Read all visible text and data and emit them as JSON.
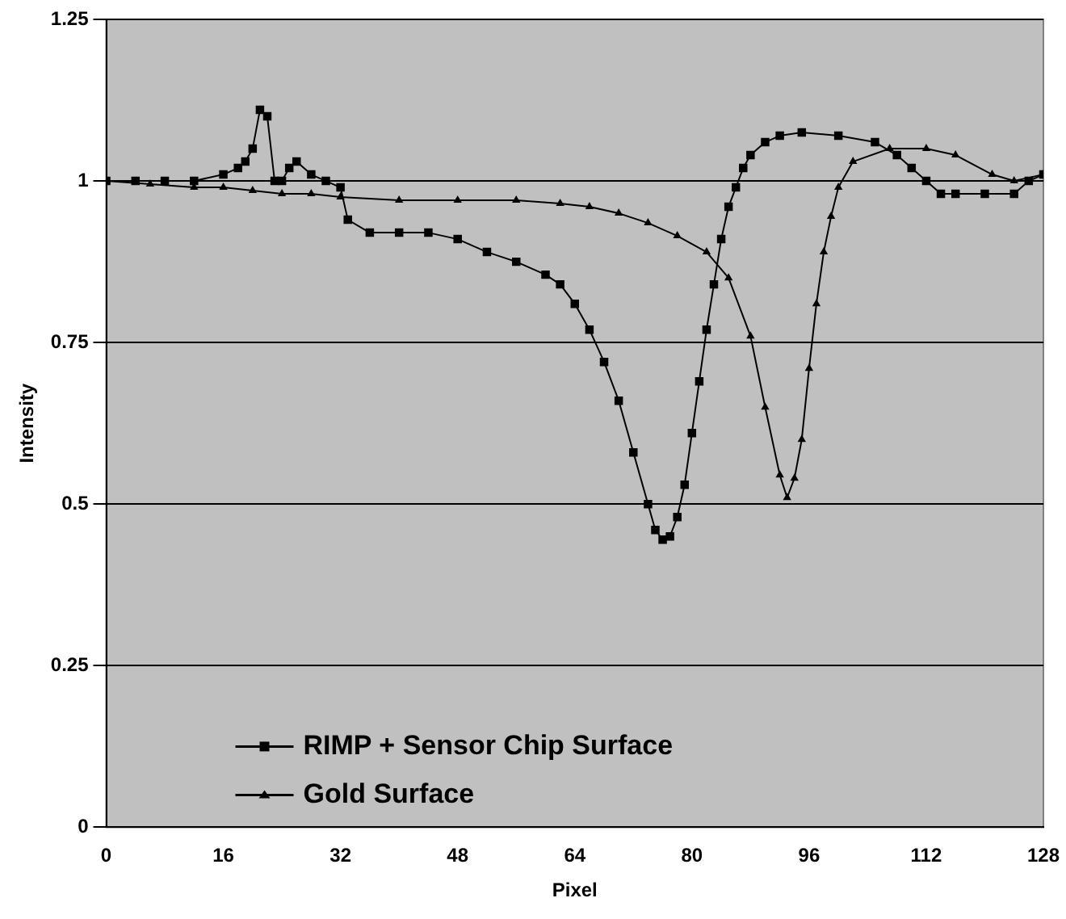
{
  "chart_data": {
    "type": "line",
    "xlabel": "Pixel",
    "ylabel": "Intensity",
    "xlim": [
      0,
      128
    ],
    "xticks": [
      0,
      16,
      32,
      48,
      64,
      80,
      96,
      112,
      128
    ],
    "ylim": [
      0,
      1.25
    ],
    "yticks": [
      0,
      0.25,
      0.5,
      0.75,
      1,
      1.25
    ],
    "grid": "y",
    "legend": "bottom left",
    "series": [
      {
        "name": "RIMP + Sensor Chip Surface",
        "color": "#000000",
        "marker": "square",
        "x": [
          0,
          4,
          8,
          12,
          16,
          18,
          19,
          20,
          21,
          22,
          23,
          24,
          25,
          26,
          28,
          30,
          32,
          33,
          36,
          40,
          44,
          48,
          52,
          56,
          60,
          62,
          64,
          66,
          68,
          70,
          72,
          74,
          75,
          76,
          77,
          78,
          79,
          80,
          81,
          82,
          83,
          84,
          85,
          86,
          87,
          88,
          90,
          92,
          95,
          100,
          105,
          108,
          110,
          112,
          114,
          116,
          120,
          124,
          126,
          128
        ],
        "values": [
          1.0,
          1.0,
          1.0,
          1.0,
          1.01,
          1.02,
          1.03,
          1.05,
          1.11,
          1.1,
          1.0,
          1.0,
          1.02,
          1.03,
          1.01,
          1.0,
          0.99,
          0.94,
          0.92,
          0.92,
          0.92,
          0.91,
          0.89,
          0.875,
          0.855,
          0.84,
          0.81,
          0.77,
          0.72,
          0.66,
          0.58,
          0.5,
          0.46,
          0.445,
          0.45,
          0.48,
          0.53,
          0.61,
          0.69,
          0.77,
          0.84,
          0.91,
          0.96,
          0.99,
          1.02,
          1.04,
          1.06,
          1.07,
          1.075,
          1.07,
          1.06,
          1.04,
          1.02,
          1.0,
          0.98,
          0.98,
          0.98,
          0.98,
          1.0,
          1.01
        ]
      },
      {
        "name": "Gold Surface",
        "color": "#000000",
        "marker": "triangle",
        "x": [
          0,
          6,
          12,
          16,
          20,
          24,
          28,
          32,
          40,
          48,
          56,
          62,
          66,
          70,
          74,
          78,
          82,
          85,
          88,
          90,
          92,
          93,
          94,
          95,
          96,
          97,
          98,
          99,
          100,
          102,
          107,
          112,
          116,
          121,
          124,
          128
        ],
        "values": [
          1.0,
          0.995,
          0.99,
          0.99,
          0.985,
          0.98,
          0.98,
          0.975,
          0.97,
          0.97,
          0.97,
          0.965,
          0.96,
          0.95,
          0.935,
          0.915,
          0.89,
          0.85,
          0.76,
          0.65,
          0.545,
          0.51,
          0.54,
          0.6,
          0.71,
          0.81,
          0.89,
          0.945,
          0.99,
          1.03,
          1.05,
          1.05,
          1.04,
          1.01,
          1.0,
          1.01
        ]
      }
    ]
  }
}
